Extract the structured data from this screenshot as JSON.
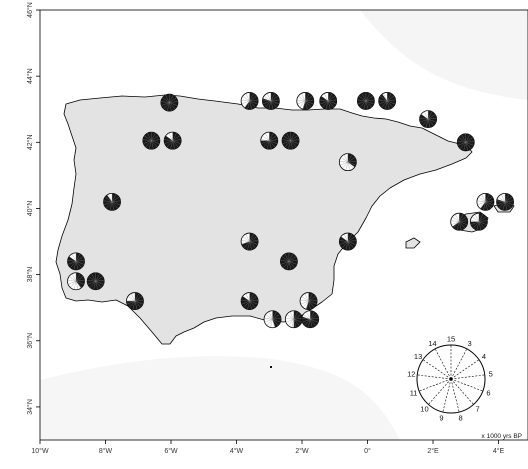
{
  "axes": {
    "x_ticks": [
      "10°W",
      "8°W",
      "6°W",
      "4°W",
      "2°W",
      "0°",
      "2°E",
      "4°E"
    ],
    "y_ticks": [
      "46°N",
      "44°N",
      "42°N",
      "40°N",
      "38°N",
      "36°N",
      "34°N"
    ],
    "lon_range": [
      -10,
      4.9
    ],
    "lat_range": [
      33.0,
      46.0
    ]
  },
  "colors": {
    "land": "#e3e3e3",
    "coast": "#000000",
    "sea_shade": "#f3f3f3",
    "pie_fill": "#1a1a1a",
    "pie_background": "#ffffff"
  },
  "sites": [
    {
      "lon": -6.05,
      "lat": 43.2,
      "filled": 1.0
    },
    {
      "lon": -3.6,
      "lat": 43.25,
      "filled": 0.6
    },
    {
      "lon": -2.95,
      "lat": 43.25,
      "filled": 0.8
    },
    {
      "lon": -1.9,
      "lat": 43.25,
      "filled": 0.55
    },
    {
      "lon": -1.2,
      "lat": 43.25,
      "filled": 0.85
    },
    {
      "lon": -0.05,
      "lat": 43.25,
      "filled": 1.0
    },
    {
      "lon": 0.6,
      "lat": 43.25,
      "filled": 0.9
    },
    {
      "lon": 1.85,
      "lat": 42.7,
      "filled": 0.85
    },
    {
      "lon": 3.0,
      "lat": 42.0,
      "filled": 1.0
    },
    {
      "lon": -6.6,
      "lat": 42.05,
      "filled": 1.0
    },
    {
      "lon": -5.95,
      "lat": 42.05,
      "filled": 0.85
    },
    {
      "lon": -3.0,
      "lat": 42.05,
      "filled": 0.75
    },
    {
      "lon": -2.35,
      "lat": 42.05,
      "filled": 1.0
    },
    {
      "lon": -0.6,
      "lat": 41.4,
      "filled": 0.35
    },
    {
      "lon": -7.8,
      "lat": 40.2,
      "filled": 0.9
    },
    {
      "lon": -3.6,
      "lat": 39.0,
      "filled": 0.7
    },
    {
      "lon": -0.6,
      "lat": 39.0,
      "filled": 0.85
    },
    {
      "lon": 2.8,
      "lat": 39.6,
      "filled": 0.65
    },
    {
      "lon": 3.4,
      "lat": 39.6,
      "filled": 0.75
    },
    {
      "lon": 3.6,
      "lat": 40.2,
      "filled": 0.6
    },
    {
      "lon": 4.2,
      "lat": 40.2,
      "filled": 0.8
    },
    {
      "lon": -8.9,
      "lat": 38.4,
      "filled": 0.85
    },
    {
      "lon": -2.4,
      "lat": 38.4,
      "filled": 1.0
    },
    {
      "lon": -8.9,
      "lat": 37.8,
      "filled": 0.4
    },
    {
      "lon": -8.3,
      "lat": 37.8,
      "filled": 1.0
    },
    {
      "lon": -7.1,
      "lat": 37.2,
      "filled": 0.75
    },
    {
      "lon": -3.6,
      "lat": 37.2,
      "filled": 0.85
    },
    {
      "lon": -1.8,
      "lat": 37.2,
      "filled": 0.55
    },
    {
      "lon": -2.9,
      "lat": 36.65,
      "filled": 0.45
    },
    {
      "lon": -2.25,
      "lat": 36.65,
      "filled": 0.5
    },
    {
      "lon": -1.75,
      "lat": 36.65,
      "filled": 0.8
    }
  ],
  "legend": {
    "clock_labels": [
      "15",
      "3",
      "4",
      "5",
      "6",
      "7",
      "8",
      "9",
      "10",
      "11",
      "12",
      "13",
      "14"
    ],
    "unit_label": "x 1000 yrs BP"
  }
}
